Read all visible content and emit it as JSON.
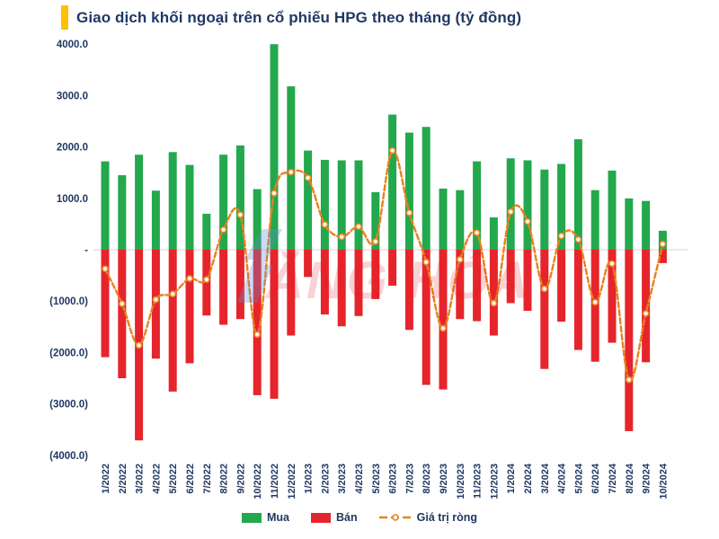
{
  "title": {
    "text": "Giao dịch khối ngoại trên cổ phiếu HPG theo tháng (tỷ đồng)"
  },
  "colors": {
    "accent_bar": "#FFC000",
    "text": "#203864",
    "green": "#23A84D",
    "red": "#E6242B",
    "orange": "#E8821E",
    "zero_line": "#D6D6D6",
    "marker_fill": "#FDF2E2"
  },
  "watermark": {
    "text": "ĂNG HÓA"
  },
  "legend": {
    "items": [
      {
        "label": "Mua"
      },
      {
        "label": "Bán"
      },
      {
        "label": "Giá trị ròng"
      }
    ]
  },
  "chart_data": {
    "type": "bar",
    "title": "Giao dịch khối ngoại trên cổ phiếu HPG theo tháng (tỷ đồng)",
    "categories": [
      "1/2022",
      "2/2022",
      "3/2022",
      "4/2022",
      "5/2022",
      "6/2022",
      "7/2022",
      "8/2022",
      "9/2022",
      "10/2022",
      "11/2022",
      "12/2022",
      "1/2023",
      "2/2023",
      "3/2023",
      "4/2023",
      "5/2023",
      "6/2023",
      "7/2023",
      "8/2023",
      "9/2023",
      "10/2023",
      "11/2023",
      "12/2023",
      "1/2024",
      "2/2024",
      "3/2024",
      "4/2024",
      "5/2024",
      "6/2024",
      "7/2024",
      "8/2024",
      "9/2024",
      "10/2024"
    ],
    "series": [
      {
        "name": "Mua",
        "type": "bar",
        "color": "#23A84D",
        "values": [
          1720,
          1450,
          1850,
          1150,
          1900,
          1650,
          700,
          1850,
          2030,
          1180,
          4000,
          3180,
          1930,
          1750,
          1740,
          1740,
          1120,
          2630,
          2280,
          2390,
          1190,
          1160,
          1720,
          630,
          1780,
          1740,
          1560,
          1670,
          2150,
          1160,
          1540,
          1000,
          950,
          370
        ]
      },
      {
        "name": "Bán",
        "type": "bar",
        "color": "#E6242B",
        "values": [
          -2090,
          -2500,
          -3710,
          -2120,
          -2760,
          -2210,
          -1280,
          -1460,
          -1350,
          -2830,
          -2900,
          -1670,
          -530,
          -1260,
          -1490,
          -1290,
          -960,
          -700,
          -1560,
          -2630,
          -2720,
          -1350,
          -1390,
          -1670,
          -1040,
          -1190,
          -2320,
          -1400,
          -1950,
          -2180,
          -1810,
          -3530,
          -2190,
          -260
        ]
      },
      {
        "name": "Giá trị ròng",
        "type": "line",
        "style": "dashed",
        "marker": "circle",
        "color": "#E8821E",
        "values": [
          -370,
          -1050,
          -1860,
          -970,
          -860,
          -560,
          -580,
          390,
          680,
          -1650,
          1100,
          1510,
          1400,
          490,
          250,
          450,
          160,
          1930,
          720,
          -240,
          -1530,
          -190,
          330,
          -1040,
          740,
          550,
          -760,
          270,
          200,
          -1020,
          -270,
          -2530,
          -1240,
          110
        ]
      }
    ],
    "ylim": [
      -4000,
      4000
    ],
    "yticks": {
      "values": [
        4000,
        3000,
        2000,
        1000,
        0,
        -1000,
        -2000,
        -3000,
        -4000
      ],
      "labels": [
        "4000.0",
        "3000.0",
        "2000.0",
        "1000.0",
        "-",
        "(1000.0)",
        "(2000.0)",
        "(3000.0)",
        "(4000.0)"
      ]
    },
    "grid": false,
    "legend_position": "bottom"
  }
}
